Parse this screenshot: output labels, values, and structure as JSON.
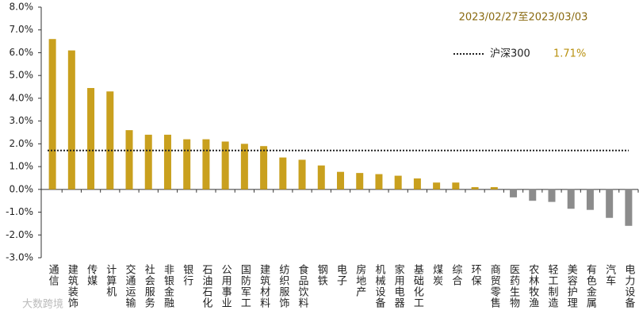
{
  "chart_data": {
    "type": "bar",
    "subtitle": "2023/02/27至2023/03/03",
    "watermark": "大数跨境",
    "categories": [
      "通信",
      "建筑装饰",
      "传媒",
      "计算机",
      "交通运输",
      "社会服务",
      "非银金融",
      "银行",
      "石油石化",
      "公用事业",
      "国防军工",
      "建筑材料",
      "纺织服饰",
      "食品饮料",
      "钢铁",
      "电子",
      "房地产",
      "机械设备",
      "家用电器",
      "基础化工",
      "煤炭",
      "综合",
      "环保",
      "商贸零售",
      "医药生物",
      "农林牧渔",
      "轻工制造",
      "美容护理",
      "有色金属",
      "汽车",
      "电力设备"
    ],
    "values": [
      6.6,
      6.1,
      4.45,
      4.3,
      2.6,
      2.4,
      2.4,
      2.2,
      2.2,
      2.1,
      2.0,
      1.9,
      1.4,
      1.3,
      1.05,
      0.77,
      0.72,
      0.67,
      0.6,
      0.48,
      0.3,
      0.3,
      0.1,
      0.1,
      -0.35,
      -0.5,
      -0.55,
      -0.85,
      -0.9,
      -1.25,
      -1.6
    ],
    "color": "#c9a01e",
    "negative_color": "#8c8c8c",
    "reference": {
      "name": "沪深300",
      "value": 1.71,
      "value_label": "1.71%"
    },
    "ylim": [
      -3,
      8
    ],
    "yticks": [
      {
        "value": -3,
        "label": "-3.0%"
      },
      {
        "value": -2,
        "label": "-2.0%"
      },
      {
        "value": -1,
        "label": "-1.0%"
      },
      {
        "value": 0,
        "label": "0.0%"
      },
      {
        "value": 1,
        "label": "1.0%"
      },
      {
        "value": 2,
        "label": "2.0%"
      },
      {
        "value": 3,
        "label": "3.0%"
      },
      {
        "value": 4,
        "label": "4.0%"
      },
      {
        "value": 5,
        "label": "5.0%"
      },
      {
        "value": 6,
        "label": "6.0%"
      },
      {
        "value": 7,
        "label": "7.0%"
      },
      {
        "value": 8,
        "label": "8.0%"
      }
    ]
  }
}
